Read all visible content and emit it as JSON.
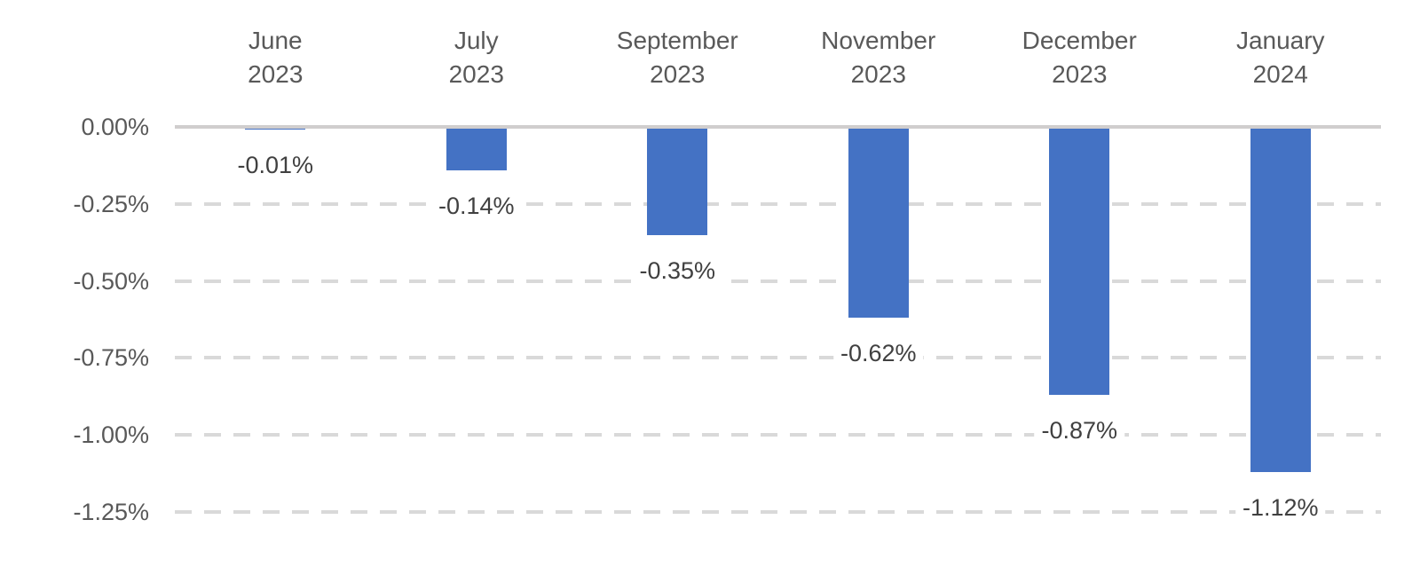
{
  "chart_data": {
    "type": "bar",
    "orientation": "vertical-negative",
    "title": "",
    "xlabel": "",
    "ylabel": "",
    "categories": [
      [
        "June",
        "2023"
      ],
      [
        "July",
        "2023"
      ],
      [
        "September",
        "2023"
      ],
      [
        "November",
        "2023"
      ],
      [
        "December",
        "2023"
      ],
      [
        "January",
        "2024"
      ]
    ],
    "values": [
      -0.01,
      -0.14,
      -0.35,
      -0.62,
      -0.87,
      -1.12
    ],
    "data_labels": [
      "-0.01%",
      "-0.14%",
      "-0.35%",
      "-0.62%",
      "-0.87%",
      "-1.12%"
    ],
    "unit": "%",
    "yticks": [
      "0.00%",
      "-0.25%",
      "-0.50%",
      "-0.75%",
      "-1.00%",
      "-1.25%"
    ],
    "ytick_values": [
      0,
      -0.25,
      -0.5,
      -0.75,
      -1.0,
      -1.25
    ],
    "ylim": [
      0,
      -1.25
    ],
    "grid": "horizontal-dashed",
    "legend": "none",
    "category_axis_position": "top",
    "colors": {
      "bar": "#4472C4",
      "gridline": "#D9D9D9",
      "zero_line": "#D0CECE",
      "axis_text": "#595959",
      "data_label_text": "#404040",
      "background": "#FFFFFF"
    }
  }
}
